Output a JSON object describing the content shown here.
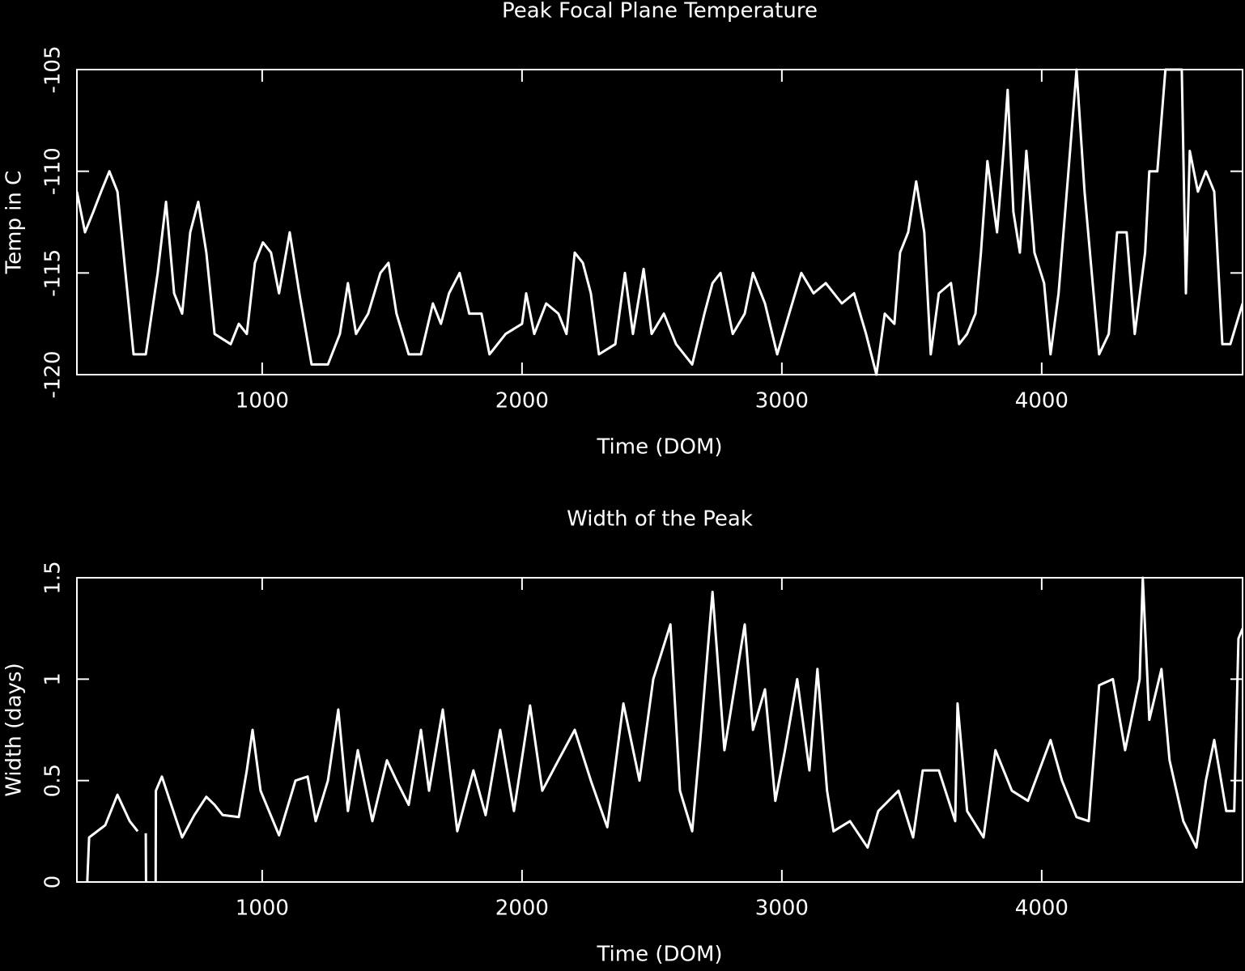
{
  "chart_data": [
    {
      "type": "line",
      "title": "Peak Focal Plane Temperature",
      "x_label": "Time (DOM)",
      "y_label": "Temp in C",
      "color": "#ffffff",
      "xlim": [
        287,
        4773
      ],
      "ylim": [
        -120,
        -105
      ],
      "xticks": [
        1000,
        2000,
        3000,
        4000
      ],
      "yticks": [
        -120,
        -115,
        -110,
        -105
      ],
      "x": [
        287,
        318,
        350,
        380,
        412,
        443,
        474,
        505,
        552,
        598,
        630,
        661,
        692,
        723,
        754,
        785,
        817,
        879,
        910,
        941,
        972,
        1003,
        1034,
        1065,
        1106,
        1143,
        1190,
        1253,
        1299,
        1330,
        1361,
        1408,
        1455,
        1486,
        1517,
        1564,
        1611,
        1657,
        1688,
        1719,
        1760,
        1797,
        1844,
        1875,
        1937,
        2000,
        2016,
        2047,
        2093,
        2140,
        2171,
        2203,
        2234,
        2265,
        2296,
        2359,
        2396,
        2427,
        2468,
        2499,
        2546,
        2593,
        2655,
        2702,
        2733,
        2764,
        2811,
        2857,
        2889,
        2935,
        2982,
        3028,
        3075,
        3122,
        3169,
        3231,
        3278,
        3324,
        3364,
        3396,
        3433,
        3455,
        3486,
        3517,
        3548,
        3573,
        3604,
        3651,
        3682,
        3713,
        3745,
        3766,
        3791,
        3828,
        3853,
        3869,
        3891,
        3916,
        3941,
        3972,
        4009,
        4034,
        4065,
        4103,
        4134,
        4165,
        4196,
        4221,
        4258,
        4290,
        4327,
        4358,
        4398,
        4414,
        4445,
        4476,
        4508,
        4539,
        4555,
        4570,
        4601,
        4632,
        4664,
        4695,
        4726,
        4773
      ],
      "values": [
        -111,
        -113,
        -112,
        -111,
        -110,
        -111,
        -115,
        -119,
        -119,
        -115,
        -111.5,
        -116,
        -117,
        -113,
        -111.5,
        -114,
        -118,
        -118.5,
        -117.5,
        -118,
        -114.5,
        -113.5,
        -114,
        -116,
        -113,
        -116,
        -119.5,
        -119.5,
        -118,
        -115.5,
        -118,
        -117,
        -115,
        -114.5,
        -117,
        -119,
        -119,
        -116.5,
        -117.5,
        -116,
        -115,
        -117,
        -117,
        -119,
        -118,
        -117.5,
        -116,
        -118,
        -116.5,
        -117,
        -118,
        -114,
        -114.5,
        -116,
        -119,
        -118.5,
        -115,
        -118,
        -114.8,
        -118,
        -117,
        -118.5,
        -119.5,
        -117,
        -115.5,
        -115,
        -118,
        -117,
        -115,
        -116.5,
        -119,
        -117,
        -115,
        -116,
        -115.5,
        -116.5,
        -116,
        -118,
        -120,
        -117,
        -117.5,
        -114,
        -113,
        -110.5,
        -113,
        -119,
        -116,
        -115.5,
        -118.5,
        -118,
        -117,
        -114,
        -109.5,
        -113,
        -109,
        -106,
        -112,
        -114,
        -109,
        -114,
        -115.5,
        -119,
        -116,
        -110,
        -105,
        -111,
        -115.5,
        -119,
        -118,
        -113,
        -113,
        -118,
        -114,
        -110,
        -110,
        -105,
        -105,
        -105,
        -116,
        -109,
        -111,
        -110,
        -111,
        -118.5,
        -118.5,
        -116.5
      ]
    },
    {
      "type": "line",
      "title": "Width of the Peak",
      "x_label": "Time (DOM)",
      "y_label": "Width (days)",
      "color": "#ffffff",
      "xlim": [
        287,
        4773
      ],
      "ylim": [
        0,
        1.5
      ],
      "xticks": [
        1000,
        2000,
        3000,
        4000
      ],
      "yticks": [
        0,
        0.5,
        1,
        1.5
      ],
      "x": [
        327,
        334,
        396,
        443,
        490,
        521,
        536,
        552,
        553,
        560,
        590,
        591,
        614,
        645,
        692,
        739,
        785,
        817,
        848,
        910,
        941,
        963,
        994,
        1065,
        1128,
        1175,
        1206,
        1253,
        1293,
        1330,
        1368,
        1424,
        1480,
        1517,
        1564,
        1611,
        1642,
        1695,
        1751,
        1813,
        1860,
        1916,
        1969,
        2031,
        2078,
        2140,
        2203,
        2265,
        2328,
        2390,
        2452,
        2505,
        2571,
        2608,
        2655,
        2686,
        2733,
        2779,
        2857,
        2889,
        2935,
        2975,
        3012,
        3059,
        3106,
        3137,
        3174,
        3199,
        3262,
        3330,
        3371,
        3449,
        3505,
        3542,
        3604,
        3667,
        3676,
        3713,
        3776,
        3822,
        3885,
        3947,
        4034,
        4078,
        4134,
        4181,
        4221,
        4274,
        4321,
        4377,
        4389,
        4414,
        4461,
        4492,
        4545,
        4595,
        4632,
        4664,
        4710,
        4741,
        4757,
        4773
      ],
      "values": [
        0,
        0.22,
        0.28,
        0.43,
        0.3,
        0.25,
        null,
        0.24,
        0,
        null,
        0,
        0.45,
        0.52,
        0.4,
        0.22,
        0.33,
        0.42,
        0.38,
        0.33,
        0.32,
        0.55,
        0.75,
        0.45,
        0.23,
        0.5,
        0.52,
        0.3,
        0.5,
        0.85,
        0.35,
        0.65,
        0.3,
        0.6,
        0.5,
        0.38,
        0.75,
        0.45,
        0.85,
        0.25,
        0.55,
        0.33,
        0.75,
        0.35,
        0.87,
        0.45,
        0.6,
        0.75,
        0.5,
        0.27,
        0.88,
        0.5,
        1.0,
        1.27,
        0.45,
        0.25,
        0.7,
        1.43,
        0.65,
        1.27,
        0.75,
        0.95,
        0.4,
        0.65,
        1.0,
        0.55,
        1.05,
        0.45,
        0.25,
        0.3,
        0.17,
        0.35,
        0.45,
        0.22,
        0.55,
        0.55,
        0.3,
        0.88,
        0.35,
        0.22,
        0.65,
        0.45,
        0.4,
        0.7,
        0.5,
        0.32,
        0.3,
        0.97,
        1.0,
        0.65,
        1.0,
        1.5,
        0.8,
        1.05,
        0.6,
        0.3,
        0.17,
        0.5,
        0.7,
        0.35,
        0.35,
        1.2,
        1.25
      ]
    }
  ]
}
